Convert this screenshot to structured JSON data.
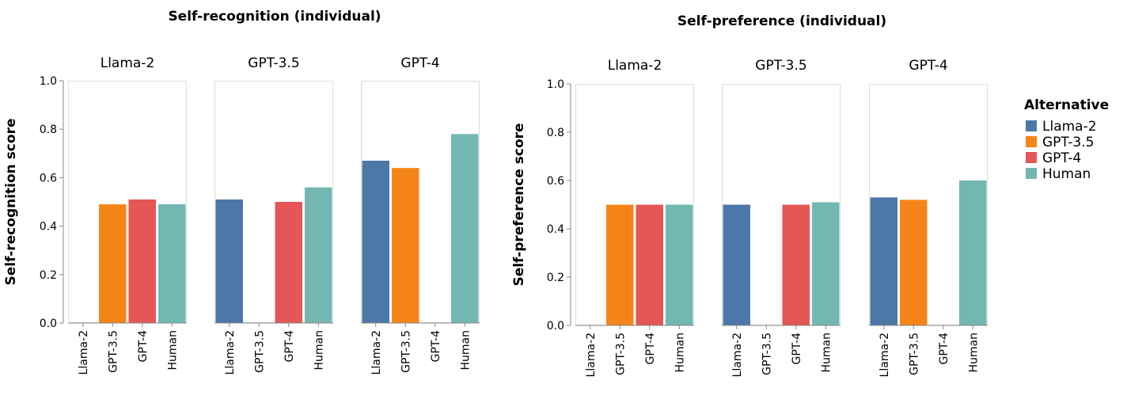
{
  "colors": {
    "Llama-2": "#4c78a8",
    "GPT-3.5": "#f58518",
    "GPT-4": "#e45756",
    "Human": "#72b7b2",
    "frame": "#dddddd",
    "axis": "#888888"
  },
  "legend": {
    "title": "Alternative",
    "items": [
      "Llama-2",
      "GPT-3.5",
      "GPT-4",
      "Human"
    ]
  },
  "chart_data": [
    {
      "type": "bar",
      "title": "Self-recognition (individual)",
      "ylabel": "Self-recognition score",
      "ylim": [
        0,
        1
      ],
      "yticks": [
        "0.0",
        "0.2",
        "0.4",
        "0.6",
        "0.8",
        "1.0"
      ],
      "categories": [
        "Llama-2",
        "GPT-3.5",
        "GPT-4",
        "Human"
      ],
      "facets": [
        {
          "name": "Llama-2",
          "values": [
            0,
            0.49,
            0.51,
            0.49
          ]
        },
        {
          "name": "GPT-3.5",
          "values": [
            0.51,
            0,
            0.5,
            0.56
          ]
        },
        {
          "name": "GPT-4",
          "values": [
            0.67,
            0.64,
            0,
            0.78
          ]
        }
      ]
    },
    {
      "type": "bar",
      "title": "Self-preference (individual)",
      "ylabel": "Self-preference score",
      "ylim": [
        0,
        1
      ],
      "yticks": [
        "0.0",
        "0.2",
        "0.4",
        "0.6",
        "0.8",
        "1.0"
      ],
      "categories": [
        "Llama-2",
        "GPT-3.5",
        "GPT-4",
        "Human"
      ],
      "facets": [
        {
          "name": "Llama-2",
          "values": [
            0,
            0.5,
            0.5,
            0.5
          ]
        },
        {
          "name": "GPT-3.5",
          "values": [
            0.5,
            0,
            0.5,
            0.51
          ]
        },
        {
          "name": "GPT-4",
          "values": [
            0.53,
            0.52,
            0,
            0.6
          ]
        }
      ]
    }
  ]
}
